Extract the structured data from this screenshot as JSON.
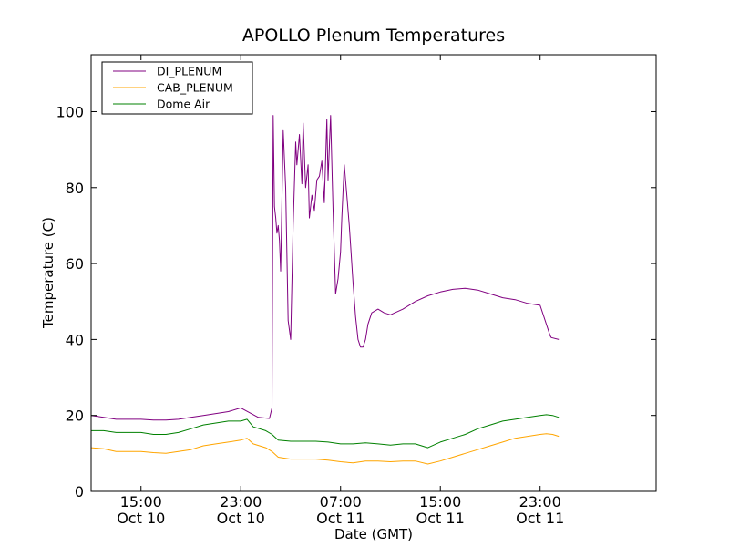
{
  "chart_data": {
    "type": "line",
    "title": "APOLLO Plenum Temperatures",
    "xlabel": "Date (GMT)",
    "ylabel": "Temperature (C)",
    "ylim": [
      0,
      115
    ],
    "xlim_hours": [
      11,
      56.3
    ],
    "x_unit": "hours since Oct 10 00:00 GMT",
    "yticks": [
      0,
      20,
      40,
      60,
      80,
      100
    ],
    "xticks": [
      {
        "hour": 15,
        "time": "15:00",
        "date": "Oct 10"
      },
      {
        "hour": 23,
        "time": "23:00",
        "date": "Oct 10"
      },
      {
        "hour": 31,
        "time": "07:00",
        "date": "Oct 11"
      },
      {
        "hour": 39,
        "time": "15:00",
        "date": "Oct 11"
      },
      {
        "hour": 47,
        "time": "23:00",
        "date": "Oct 11"
      }
    ],
    "legend_position": "top-left",
    "grid": false,
    "series": [
      {
        "name": "DI_PLENUM",
        "color": "#800080",
        "x": [
          11,
          12,
          13,
          14,
          15,
          16,
          17,
          18,
          19,
          20,
          21,
          22,
          23,
          24.4,
          25.3,
          25.5,
          25.6,
          25.7,
          25.8,
          25.9,
          26.0,
          26.1,
          26.2,
          26.4,
          26.6,
          26.8,
          27.0,
          27.2,
          27.4,
          27.5,
          27.7,
          27.9,
          28.0,
          28.2,
          28.4,
          28.5,
          28.7,
          28.9,
          29.1,
          29.3,
          29.5,
          29.7,
          29.9,
          30.0,
          30.2,
          30.4,
          30.6,
          30.8,
          31.0,
          31.1,
          31.3,
          31.5,
          31.7,
          31.8,
          32.0,
          32.2,
          32.4,
          32.6,
          32.8,
          33.0,
          33.2,
          33.5,
          34.0,
          34.5,
          35.0,
          36.0,
          37.0,
          38.0,
          39.0,
          40.0,
          41.0,
          42.0,
          43.0,
          44.0,
          45.0,
          46.0,
          47.0,
          47.8,
          47.9,
          48.5
        ],
        "values": [
          20,
          19.5,
          19,
          19,
          19,
          18.8,
          18.8,
          19,
          19.5,
          20,
          20.5,
          21,
          22,
          19.5,
          19.2,
          22,
          99,
          75,
          72,
          68,
          70,
          66,
          58,
          95,
          80,
          45,
          40,
          70,
          92,
          86,
          94,
          81,
          97,
          80,
          86,
          72,
          78,
          74,
          82,
          83,
          87,
          76,
          98,
          82,
          99,
          74,
          52,
          56,
          63,
          72,
          86,
          78,
          70,
          65,
          55,
          46,
          40,
          38,
          38,
          40,
          44,
          47,
          48,
          47,
          46.5,
          48,
          50,
          51.5,
          52.5,
          53.2,
          53.5,
          53,
          52,
          51,
          50.5,
          49.5,
          49,
          41,
          40.5,
          40
        ]
      },
      {
        "name": "CAB_PLENUM",
        "color": "#FFA500",
        "x": [
          11,
          12,
          13,
          14,
          15,
          16,
          17,
          18,
          19,
          20,
          21,
          22,
          23,
          23.5,
          24.0,
          25.0,
          25.5,
          26.0,
          27.0,
          28.0,
          29.0,
          30.0,
          31.0,
          32.0,
          33.0,
          34.0,
          35.0,
          36.0,
          37.0,
          38.0,
          39.0,
          40.0,
          41.0,
          42.0,
          43.0,
          44.0,
          45.0,
          46.0,
          47.0,
          47.5,
          48.0,
          48.5
        ],
        "values": [
          11.5,
          11.2,
          10.5,
          10.5,
          10.5,
          10.2,
          10,
          10.5,
          11,
          12,
          12.5,
          13,
          13.5,
          14,
          12.5,
          11.5,
          10.5,
          9,
          8.5,
          8.5,
          8.5,
          8.2,
          7.8,
          7.5,
          8,
          8,
          7.8,
          8,
          8,
          7.2,
          8,
          9,
          10,
          11,
          12,
          13,
          14,
          14.5,
          15,
          15.2,
          15,
          14.5
        ]
      },
      {
        "name": "Dome Air",
        "color": "#008000",
        "x": [
          11,
          12,
          13,
          14,
          15,
          16,
          17,
          18,
          19,
          20,
          21,
          22,
          23,
          23.5,
          24.0,
          25.0,
          25.5,
          26.0,
          27.0,
          28.0,
          29.0,
          30.0,
          31.0,
          32.0,
          33.0,
          34.0,
          35.0,
          36.0,
          37.0,
          38.0,
          39.0,
          40.0,
          41.0,
          42.0,
          43.0,
          44.0,
          45.0,
          46.0,
          47.0,
          47.5,
          48.0,
          48.5
        ],
        "values": [
          16,
          16,
          15.5,
          15.5,
          15.5,
          15,
          15,
          15.5,
          16.5,
          17.5,
          18,
          18.5,
          18.5,
          19,
          17,
          16,
          15,
          13.5,
          13.2,
          13.2,
          13.2,
          13,
          12.5,
          12.5,
          12.8,
          12.5,
          12.2,
          12.5,
          12.5,
          11.5,
          13,
          14,
          15,
          16.5,
          17.5,
          18.5,
          19,
          19.5,
          20,
          20.2,
          20,
          19.5
        ]
      }
    ]
  }
}
